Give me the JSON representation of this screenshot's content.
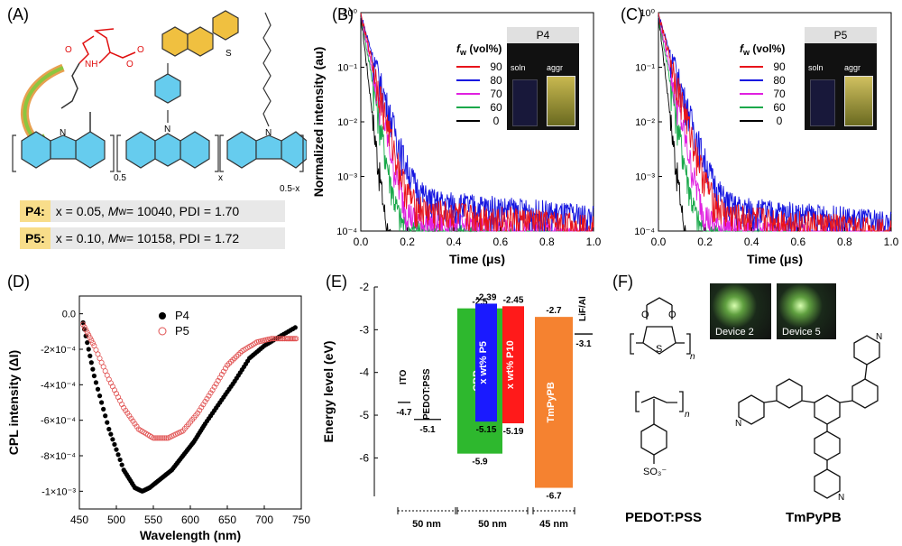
{
  "panels": {
    "A": {
      "label": "(A)",
      "subscripts": [
        "0.5",
        "x",
        "0.5-x"
      ],
      "s_atom": "S",
      "n_atom": "N",
      "carbazole_n": "N",
      "amide_h": "NH",
      "ester_o": "O",
      "formulas": [
        {
          "tag": "P4:",
          "x": "x = 0.05,",
          "mw_label": "M",
          "mw_sub": "w",
          "mw": " = 10040, PDI = 1.70"
        },
        {
          "tag": "P5:",
          "x": "x = 0.10,",
          "mw_label": "M",
          "mw_sub": "w",
          "mw": " = 10158, PDI = 1.72"
        }
      ]
    },
    "B": {
      "label": "(B)",
      "photo_title": "P4",
      "soln": "soln",
      "aggr": "aggr"
    },
    "C": {
      "label": "(C)",
      "photo_title": "P5",
      "soln": "soln",
      "aggr": "aggr"
    },
    "D": {
      "label": "(D)"
    },
    "E": {
      "label": "(E)"
    },
    "F": {
      "label": "(F)",
      "device_labels": [
        "Device 2",
        "Device 5"
      ],
      "pedot_label": "PEDOT:PSS",
      "tmpypb_label": "TmPyPB",
      "n_sub": "n",
      "so3": "SO₃⁻",
      "o": "O",
      "s": "S",
      "pyridine_n": "N"
    }
  },
  "chart_data": [
    {
      "type": "line",
      "panel": "B",
      "xlabel": "Time (μs)",
      "ylabel": "Normalized intensity (au)",
      "xlim": [
        0.0,
        1.0
      ],
      "ylim": [
        0.0001,
        1
      ],
      "yscale": "log",
      "xticks": [
        "0.0",
        "0.2",
        "0.4",
        "0.6",
        "0.8",
        "1.0"
      ],
      "yticks": [
        "10⁰",
        "10⁻¹",
        "10⁻²",
        "10⁻³",
        "10⁻⁴"
      ],
      "legend_title": "f",
      "legend_title_sub": "w",
      "legend_title_rest": " (vol%)",
      "series": [
        {
          "name": "90",
          "color": "#e8141b",
          "tail": 0.0003,
          "decay": 0.025
        },
        {
          "name": "80",
          "color": "#1515e0",
          "tail": 0.00045,
          "decay": 0.03
        },
        {
          "name": "70",
          "color": "#e020e0",
          "tail": 0.00018,
          "decay": 0.022
        },
        {
          "name": "60",
          "color": "#19a84a",
          "tail": 0.00012,
          "decay": 0.018
        },
        {
          "name": "0",
          "color": "#000000",
          "tail": 5e-05,
          "decay": 0.012
        }
      ]
    },
    {
      "type": "line",
      "panel": "C",
      "xlabel": "Time (μs)",
      "ylabel": "",
      "xlim": [
        0.0,
        1.0
      ],
      "ylim": [
        0.0001,
        1
      ],
      "yscale": "log",
      "xticks": [
        "0.0",
        "0.2",
        "0.4",
        "0.6",
        "0.8",
        "1.0"
      ],
      "yticks": [
        "10⁰",
        "10⁻¹",
        "10⁻²",
        "10⁻³",
        "10⁻⁴"
      ],
      "legend_title": "f",
      "legend_title_sub": "w",
      "legend_title_rest": " (vol%)",
      "series": [
        {
          "name": "90",
          "color": "#e8141b",
          "tail": 0.00025,
          "decay": 0.028
        },
        {
          "name": "80",
          "color": "#1515e0",
          "tail": 0.00035,
          "decay": 0.032
        },
        {
          "name": "70",
          "color": "#e020e0",
          "tail": 0.00015,
          "decay": 0.022
        },
        {
          "name": "60",
          "color": "#19a84a",
          "tail": 0.0001,
          "decay": 0.018
        },
        {
          "name": "0",
          "color": "#000000",
          "tail": 4e-05,
          "decay": 0.012
        }
      ]
    },
    {
      "type": "scatter",
      "panel": "D",
      "xlabel": "Wavelength (nm)",
      "ylabel": "CPL intensity (ΔI)",
      "xlim": [
        450,
        750
      ],
      "ylim": [
        -0.0011,
        0.0001
      ],
      "xticks": [
        "450",
        "500",
        "550",
        "600",
        "650",
        "700",
        "750"
      ],
      "yticks": [
        "0.0",
        "-2×10⁻⁴",
        "-4×10⁻⁴",
        "-6×10⁻⁴",
        "-8×10⁻⁴",
        "-1×10⁻³"
      ],
      "series": [
        {
          "name": "P4",
          "marker": "filled",
          "color": "#000000",
          "x": [
            455,
            470,
            490,
            510,
            525,
            535,
            545,
            560,
            575,
            590,
            605,
            620,
            640,
            660,
            680,
            700,
            720,
            745
          ],
          "y": [
            -5e-05,
            -0.00035,
            -0.00065,
            -0.00088,
            -0.00098,
            -0.001,
            -0.00098,
            -0.00093,
            -0.00088,
            -0.0008,
            -0.00072,
            -0.00062,
            -0.0005,
            -0.00038,
            -0.00025,
            -0.00018,
            -0.00013,
            -7e-05
          ]
        },
        {
          "name": "P5",
          "marker": "open",
          "color": "#e05050",
          "x": [
            455,
            470,
            490,
            510,
            530,
            550,
            570,
            590,
            610,
            630,
            650,
            670,
            690,
            710,
            730,
            745
          ],
          "y": [
            -6e-05,
            -0.00018,
            -0.00037,
            -0.00053,
            -0.00065,
            -0.0007,
            -0.0007,
            -0.00066,
            -0.00056,
            -0.00043,
            -0.00029,
            -0.00021,
            -0.00016,
            -0.00014,
            -0.00014,
            -0.00014
          ]
        }
      ]
    },
    {
      "type": "bar",
      "panel": "E",
      "ylabel": "Energy level (eV)",
      "ylim": [
        -6.9,
        -2.0
      ],
      "yticks": [
        "-2",
        "-3",
        "-4",
        "-5",
        "-6"
      ],
      "layers": [
        {
          "name": "ITO",
          "kind": "line",
          "level": -4.7,
          "level_label": "-4.7"
        },
        {
          "name": "PEDOT:PSS",
          "kind": "line",
          "level": -5.1,
          "level_label": "-5.1"
        },
        {
          "name": "CBP",
          "kind": "bar",
          "color": "#2eb82e",
          "top": -2.5,
          "bottom": -5.9,
          "top_label": "-2.5",
          "bottom_label": "-5.9"
        },
        {
          "name": "x wt% P5",
          "kind": "bar",
          "color": "#1a1aff",
          "top": -2.39,
          "bottom": -5.15,
          "top_label": "-2.39",
          "bottom_label": "-5.15"
        },
        {
          "name": "x wt% P10",
          "kind": "bar",
          "color": "#ff1a1a",
          "top": -2.45,
          "bottom": -5.19,
          "top_label": "-2.45",
          "bottom_label": "-5.19"
        },
        {
          "name": "TmPyPB",
          "kind": "bar",
          "color": "#f58230",
          "top": -2.7,
          "bottom": -6.7,
          "top_label": "-2.7",
          "bottom_label": "-6.7"
        },
        {
          "name": "LiF/Al",
          "kind": "line",
          "level": -3.1,
          "level_label": "-3.1"
        }
      ],
      "thickness": [
        "50 nm",
        "50 nm",
        "45 nm"
      ]
    }
  ]
}
